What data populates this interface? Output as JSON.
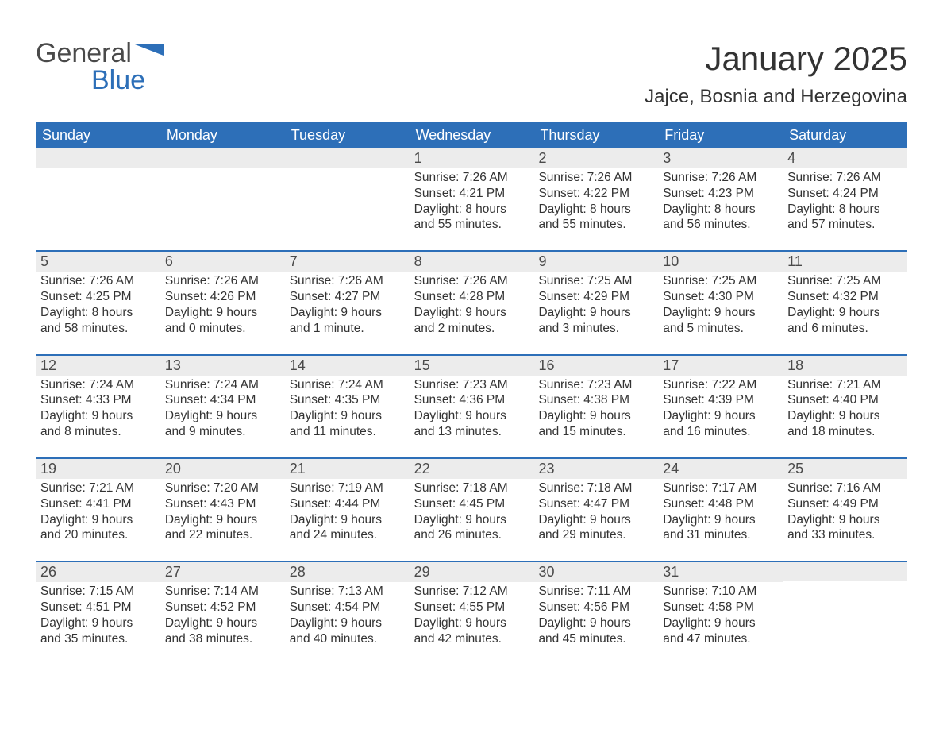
{
  "logo": {
    "text1": "General",
    "text2": "Blue",
    "flag_color": "#2d6fb8"
  },
  "title": "January 2025",
  "location": "Jajce, Bosnia and Herzegovina",
  "colors": {
    "header_bg": "#2d6fb8",
    "header_text": "#ffffff",
    "daynum_bg": "#ececec",
    "week_border": "#2d6fb8",
    "body_text": "#333333",
    "page_bg": "#ffffff"
  },
  "fonts": {
    "title_size": 42,
    "location_size": 24,
    "dow_size": 18,
    "daynum_size": 18,
    "body_size": 15.5
  },
  "days_of_week": [
    "Sunday",
    "Monday",
    "Tuesday",
    "Wednesday",
    "Thursday",
    "Friday",
    "Saturday"
  ],
  "weeks": [
    [
      {
        "num": "",
        "sunrise": "",
        "sunset": "",
        "daylight": ""
      },
      {
        "num": "",
        "sunrise": "",
        "sunset": "",
        "daylight": ""
      },
      {
        "num": "",
        "sunrise": "",
        "sunset": "",
        "daylight": ""
      },
      {
        "num": "1",
        "sunrise": "Sunrise: 7:26 AM",
        "sunset": "Sunset: 4:21 PM",
        "daylight": "Daylight: 8 hours and 55 minutes."
      },
      {
        "num": "2",
        "sunrise": "Sunrise: 7:26 AM",
        "sunset": "Sunset: 4:22 PM",
        "daylight": "Daylight: 8 hours and 55 minutes."
      },
      {
        "num": "3",
        "sunrise": "Sunrise: 7:26 AM",
        "sunset": "Sunset: 4:23 PM",
        "daylight": "Daylight: 8 hours and 56 minutes."
      },
      {
        "num": "4",
        "sunrise": "Sunrise: 7:26 AM",
        "sunset": "Sunset: 4:24 PM",
        "daylight": "Daylight: 8 hours and 57 minutes."
      }
    ],
    [
      {
        "num": "5",
        "sunrise": "Sunrise: 7:26 AM",
        "sunset": "Sunset: 4:25 PM",
        "daylight": "Daylight: 8 hours and 58 minutes."
      },
      {
        "num": "6",
        "sunrise": "Sunrise: 7:26 AM",
        "sunset": "Sunset: 4:26 PM",
        "daylight": "Daylight: 9 hours and 0 minutes."
      },
      {
        "num": "7",
        "sunrise": "Sunrise: 7:26 AM",
        "sunset": "Sunset: 4:27 PM",
        "daylight": "Daylight: 9 hours and 1 minute."
      },
      {
        "num": "8",
        "sunrise": "Sunrise: 7:26 AM",
        "sunset": "Sunset: 4:28 PM",
        "daylight": "Daylight: 9 hours and 2 minutes."
      },
      {
        "num": "9",
        "sunrise": "Sunrise: 7:25 AM",
        "sunset": "Sunset: 4:29 PM",
        "daylight": "Daylight: 9 hours and 3 minutes."
      },
      {
        "num": "10",
        "sunrise": "Sunrise: 7:25 AM",
        "sunset": "Sunset: 4:30 PM",
        "daylight": "Daylight: 9 hours and 5 minutes."
      },
      {
        "num": "11",
        "sunrise": "Sunrise: 7:25 AM",
        "sunset": "Sunset: 4:32 PM",
        "daylight": "Daylight: 9 hours and 6 minutes."
      }
    ],
    [
      {
        "num": "12",
        "sunrise": "Sunrise: 7:24 AM",
        "sunset": "Sunset: 4:33 PM",
        "daylight": "Daylight: 9 hours and 8 minutes."
      },
      {
        "num": "13",
        "sunrise": "Sunrise: 7:24 AM",
        "sunset": "Sunset: 4:34 PM",
        "daylight": "Daylight: 9 hours and 9 minutes."
      },
      {
        "num": "14",
        "sunrise": "Sunrise: 7:24 AM",
        "sunset": "Sunset: 4:35 PM",
        "daylight": "Daylight: 9 hours and 11 minutes."
      },
      {
        "num": "15",
        "sunrise": "Sunrise: 7:23 AM",
        "sunset": "Sunset: 4:36 PM",
        "daylight": "Daylight: 9 hours and 13 minutes."
      },
      {
        "num": "16",
        "sunrise": "Sunrise: 7:23 AM",
        "sunset": "Sunset: 4:38 PM",
        "daylight": "Daylight: 9 hours and 15 minutes."
      },
      {
        "num": "17",
        "sunrise": "Sunrise: 7:22 AM",
        "sunset": "Sunset: 4:39 PM",
        "daylight": "Daylight: 9 hours and 16 minutes."
      },
      {
        "num": "18",
        "sunrise": "Sunrise: 7:21 AM",
        "sunset": "Sunset: 4:40 PM",
        "daylight": "Daylight: 9 hours and 18 minutes."
      }
    ],
    [
      {
        "num": "19",
        "sunrise": "Sunrise: 7:21 AM",
        "sunset": "Sunset: 4:41 PM",
        "daylight": "Daylight: 9 hours and 20 minutes."
      },
      {
        "num": "20",
        "sunrise": "Sunrise: 7:20 AM",
        "sunset": "Sunset: 4:43 PM",
        "daylight": "Daylight: 9 hours and 22 minutes."
      },
      {
        "num": "21",
        "sunrise": "Sunrise: 7:19 AM",
        "sunset": "Sunset: 4:44 PM",
        "daylight": "Daylight: 9 hours and 24 minutes."
      },
      {
        "num": "22",
        "sunrise": "Sunrise: 7:18 AM",
        "sunset": "Sunset: 4:45 PM",
        "daylight": "Daylight: 9 hours and 26 minutes."
      },
      {
        "num": "23",
        "sunrise": "Sunrise: 7:18 AM",
        "sunset": "Sunset: 4:47 PM",
        "daylight": "Daylight: 9 hours and 29 minutes."
      },
      {
        "num": "24",
        "sunrise": "Sunrise: 7:17 AM",
        "sunset": "Sunset: 4:48 PM",
        "daylight": "Daylight: 9 hours and 31 minutes."
      },
      {
        "num": "25",
        "sunrise": "Sunrise: 7:16 AM",
        "sunset": "Sunset: 4:49 PM",
        "daylight": "Daylight: 9 hours and 33 minutes."
      }
    ],
    [
      {
        "num": "26",
        "sunrise": "Sunrise: 7:15 AM",
        "sunset": "Sunset: 4:51 PM",
        "daylight": "Daylight: 9 hours and 35 minutes."
      },
      {
        "num": "27",
        "sunrise": "Sunrise: 7:14 AM",
        "sunset": "Sunset: 4:52 PM",
        "daylight": "Daylight: 9 hours and 38 minutes."
      },
      {
        "num": "28",
        "sunrise": "Sunrise: 7:13 AM",
        "sunset": "Sunset: 4:54 PM",
        "daylight": "Daylight: 9 hours and 40 minutes."
      },
      {
        "num": "29",
        "sunrise": "Sunrise: 7:12 AM",
        "sunset": "Sunset: 4:55 PM",
        "daylight": "Daylight: 9 hours and 42 minutes."
      },
      {
        "num": "30",
        "sunrise": "Sunrise: 7:11 AM",
        "sunset": "Sunset: 4:56 PM",
        "daylight": "Daylight: 9 hours and 45 minutes."
      },
      {
        "num": "31",
        "sunrise": "Sunrise: 7:10 AM",
        "sunset": "Sunset: 4:58 PM",
        "daylight": "Daylight: 9 hours and 47 minutes."
      },
      {
        "num": "",
        "sunrise": "",
        "sunset": "",
        "daylight": ""
      }
    ]
  ]
}
